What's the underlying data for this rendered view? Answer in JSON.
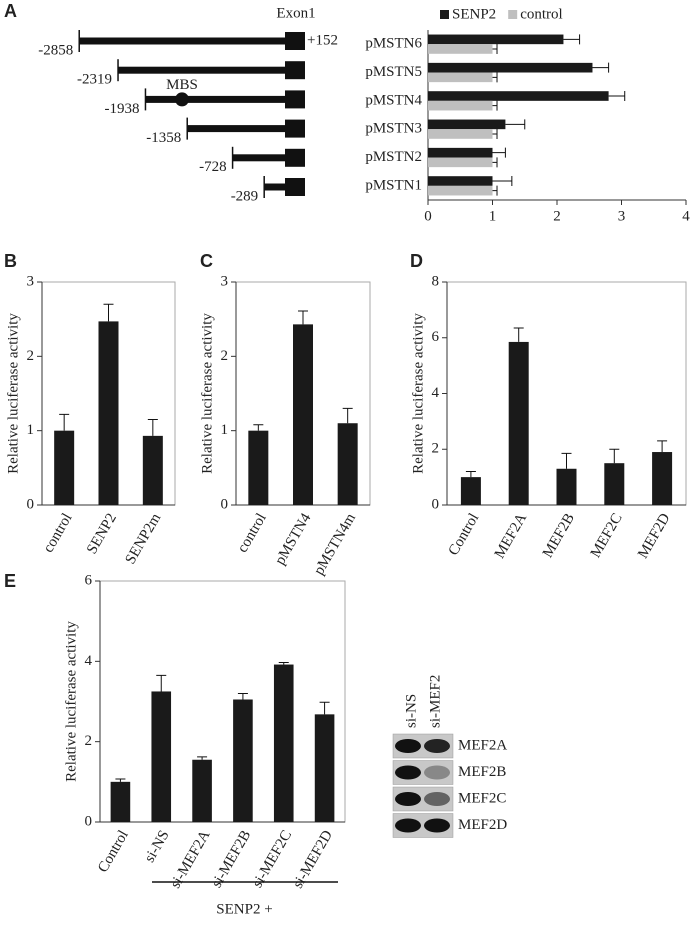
{
  "panel_labels": [
    "A",
    "B",
    "C",
    "D",
    "E"
  ],
  "promoter_diagram": {
    "exon_label": "Exon1",
    "exon_end_label": "+152",
    "site_label": "MBS",
    "constructs": [
      -2858,
      -2319,
      -1938,
      -1358,
      -728,
      -289
    ]
  },
  "western_blot": {
    "columns": [
      "si-NS",
      "si-MEF2"
    ],
    "rows": [
      "MEF2A",
      "MEF2B",
      "MEF2C",
      "MEF2D"
    ]
  },
  "chart_data": [
    {
      "type": "barh",
      "categories": [
        "pMSTN6",
        "pMSTN5",
        "pMSTN4",
        "pMSTN3",
        "pMSTN2",
        "pMSTN1"
      ],
      "series": [
        {
          "name": "SENP2",
          "color": "#1a1a1a",
          "values": [
            2.1,
            2.55,
            2.8,
            1.2,
            1.0,
            1.0
          ],
          "errors": [
            0.25,
            0.25,
            0.25,
            0.3,
            0.2,
            0.3
          ]
        },
        {
          "name": "control",
          "color": "#bfbfbf",
          "values": [
            1.0,
            1.0,
            1.0,
            1.0,
            1.0,
            1.0
          ],
          "errors": [
            0.07,
            0.07,
            0.07,
            0.07,
            0.07,
            0.07
          ]
        }
      ],
      "xlim": [
        0,
        4
      ],
      "xticks": [
        0,
        1,
        2,
        3,
        4
      ],
      "legend": "top"
    },
    {
      "type": "bar",
      "ylabel": "Relative luciferase activity",
      "categories": [
        "control",
        "SENP2",
        "SENP2m"
      ],
      "values": [
        1.0,
        2.47,
        0.93
      ],
      "errors": [
        0.22,
        0.23,
        0.22
      ],
      "color": "#1a1a1a",
      "ylim": [
        0,
        3
      ],
      "yticks": [
        0,
        1,
        2,
        3
      ]
    },
    {
      "type": "bar",
      "ylabel": "Relative luciferase activity",
      "categories": [
        "control",
        "pMSTN4",
        "pMSTN4m"
      ],
      "values": [
        1.0,
        2.43,
        1.1
      ],
      "errors": [
        0.08,
        0.18,
        0.2
      ],
      "color": "#1a1a1a",
      "ylim": [
        0,
        3
      ],
      "yticks": [
        0,
        1,
        2,
        3
      ]
    },
    {
      "type": "bar",
      "ylabel": "Relative luciferase activity",
      "categories": [
        "Control",
        "MEF2A",
        "MEF2B",
        "MEF2C",
        "MEF2D"
      ],
      "values": [
        1.0,
        5.85,
        1.3,
        1.5,
        1.9
      ],
      "errors": [
        0.2,
        0.5,
        0.55,
        0.5,
        0.4
      ],
      "color": "#1a1a1a",
      "ylim": [
        0,
        8
      ],
      "yticks": [
        0,
        2,
        4,
        6,
        8
      ]
    },
    {
      "type": "bar",
      "ylabel": "Relative luciferase activity",
      "categories": [
        "Control",
        "si-NS",
        "si-MEF2A",
        "si-MEF2B",
        "si-MEF2C",
        "si-MEF2D"
      ],
      "values": [
        1.0,
        3.25,
        1.55,
        3.05,
        3.92,
        2.68
      ],
      "errors": [
        0.07,
        0.4,
        0.07,
        0.15,
        0.05,
        0.3
      ],
      "color": "#1a1a1a",
      "ylim": [
        0,
        6
      ],
      "yticks": [
        0,
        2,
        4,
        6
      ],
      "group_label": "SENP2 +"
    }
  ]
}
